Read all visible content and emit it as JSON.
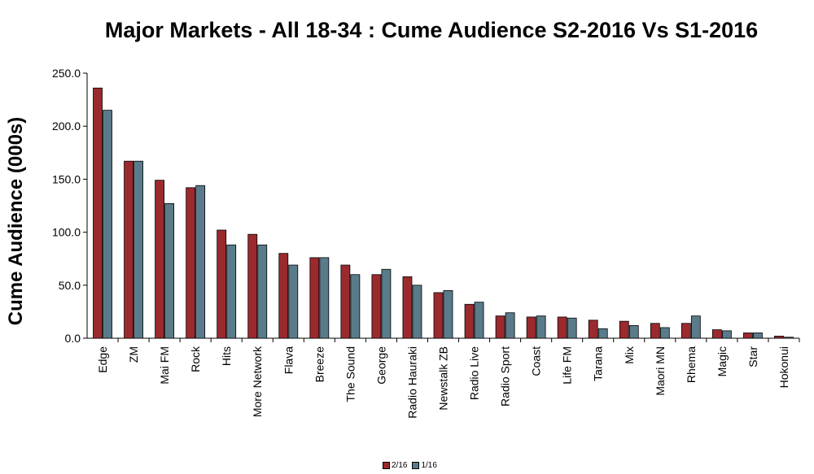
{
  "chart_data": {
    "type": "bar",
    "title": "Major Markets - All 18-34 : Cume Audience S2-2016 Vs S1-2016",
    "ylabel": "Cume Audience (000s)",
    "xlabel": "",
    "ylim": [
      0,
      250
    ],
    "yticks": [
      "0.0",
      "50.0",
      "100.0",
      "150.0",
      "200.0",
      "250.0"
    ],
    "categories": [
      "Edge",
      "ZM",
      "Mai FM",
      "Rock",
      "Hits",
      "More Network",
      "Flava",
      "Breeze",
      "The Sound",
      "George",
      "Radio Hauraki",
      "Newstalk ZB",
      "Radio Live",
      "Radio Sport",
      "Coast",
      "Life FM",
      "Tarana",
      "Mix",
      "Maori MN",
      "Rhema",
      "Magic",
      "Star",
      "Hokonui"
    ],
    "series": [
      {
        "name": "2/16",
        "color": "#9b2a2e",
        "values": [
          236,
          167,
          149,
          142,
          102,
          98,
          80,
          76,
          69,
          60,
          58,
          43,
          32,
          21,
          20,
          20,
          17,
          16,
          14,
          14,
          8,
          5,
          2
        ]
      },
      {
        "name": "1/16",
        "color": "#5a7b8a",
        "values": [
          215,
          167,
          127,
          144,
          88,
          88,
          69,
          76,
          60,
          65,
          50,
          45,
          34,
          24,
          21,
          19,
          9,
          12,
          10,
          21,
          7,
          5,
          1
        ]
      }
    ],
    "grid": false,
    "legend_position": "bottom"
  }
}
